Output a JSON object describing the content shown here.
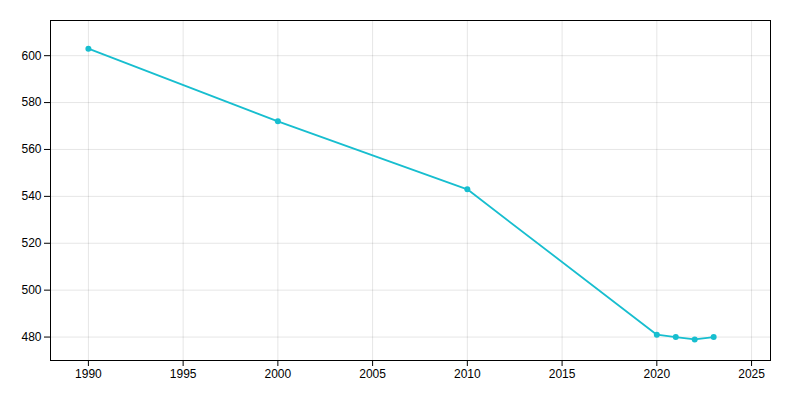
{
  "chart_data": {
    "type": "line",
    "x": [
      1990,
      2000,
      2010,
      2020,
      2021,
      2022,
      2023
    ],
    "values": [
      603,
      572,
      543,
      481,
      480,
      479,
      480
    ],
    "color": "#17becf",
    "marker": "circle",
    "xlim": [
      1988,
      2026
    ],
    "ylim": [
      470,
      615
    ],
    "xticks": [
      1990,
      1995,
      2000,
      2005,
      2010,
      2015,
      2020,
      2025
    ],
    "yticks": [
      480,
      500,
      520,
      540,
      560,
      580,
      600
    ],
    "grid": true
  }
}
